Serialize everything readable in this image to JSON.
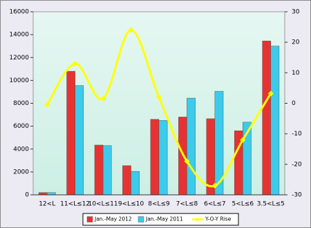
{
  "chart_data": {
    "type": "bar",
    "categories": [
      "12<L",
      "11<L≤12",
      "10<L≤11",
      "9<L≤10",
      "8<L≤9",
      "7<L≤8",
      "6<L≤7",
      "5<L≤6",
      "3.5<L≤5"
    ],
    "series": [
      {
        "name": "Jan.-May 2012",
        "color": "#e83232",
        "values": [
          200,
          10800,
          4350,
          2550,
          6600,
          6800,
          6650,
          5600,
          13450
        ]
      },
      {
        "name": "Jan.-May 2011",
        "color": "#3ccbeb",
        "values": [
          200,
          9550,
          4300,
          2050,
          6500,
          8450,
          9050,
          6350,
          13000
        ]
      },
      {
        "name": "Y-O-Y Rise",
        "color": "#ffff00",
        "type": "line",
        "axis": "y2",
        "values": [
          -0.5,
          13,
          1.5,
          24,
          2,
          -19,
          -27,
          -12,
          3.2
        ]
      }
    ],
    "ylim": [
      0,
      16000
    ],
    "yticks": [
      0,
      2000,
      4000,
      6000,
      8000,
      10000,
      12000,
      14000,
      16000
    ],
    "y2lim": [
      -30,
      30
    ],
    "y2ticks": [
      -30,
      -20,
      -10,
      0,
      10,
      20,
      30
    ]
  }
}
